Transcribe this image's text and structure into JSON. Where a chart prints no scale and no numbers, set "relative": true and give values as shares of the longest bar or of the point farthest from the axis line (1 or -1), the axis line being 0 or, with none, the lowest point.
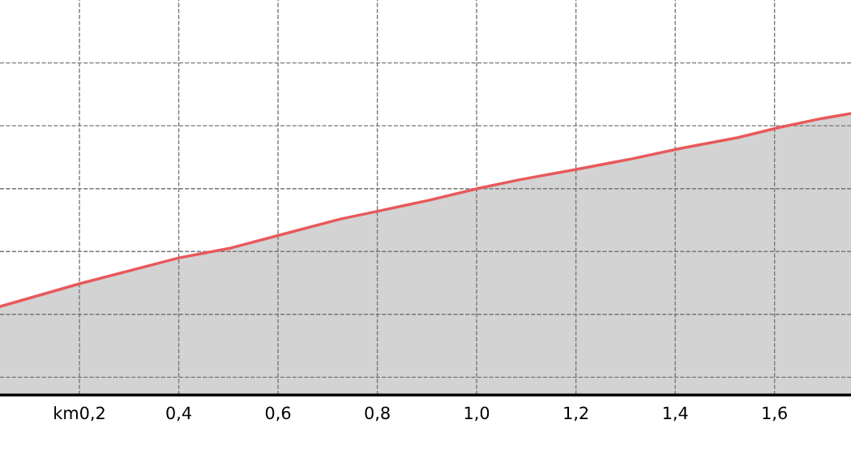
{
  "chart_data": {
    "type": "area",
    "relative": true,
    "x": [
      0.04,
      0.2,
      0.4,
      0.505,
      0.603,
      0.726,
      0.804,
      0.905,
      1.006,
      1.085,
      1.209,
      1.313,
      1.411,
      1.526,
      1.611,
      1.689,
      1.754
    ],
    "series": [
      {
        "color": "#e8595b",
        "values": [
          0.314,
          0.395,
          0.487,
          0.522,
          0.568,
          0.625,
          0.654,
          0.692,
          0.735,
          0.764,
          0.804,
          0.839,
          0.876,
          0.914,
          0.951,
          0.98,
          1.0
        ]
      }
    ],
    "xlim": [
      0.04,
      1.754
    ],
    "xticks": [
      {
        "value": 0.2,
        "label": "km0,2"
      },
      {
        "value": 0.4,
        "label": "0,4"
      },
      {
        "value": 0.6,
        "label": "0,6"
      },
      {
        "value": 0.8,
        "label": "0,8"
      },
      {
        "value": 1.0,
        "label": "1,0"
      },
      {
        "value": 1.2,
        "label": "1,2"
      },
      {
        "value": 1.4,
        "label": "1,4"
      },
      {
        "value": 1.6,
        "label": "1,6"
      }
    ],
    "grid": true,
    "tick_labels": "x",
    "line_style": "solid"
  }
}
